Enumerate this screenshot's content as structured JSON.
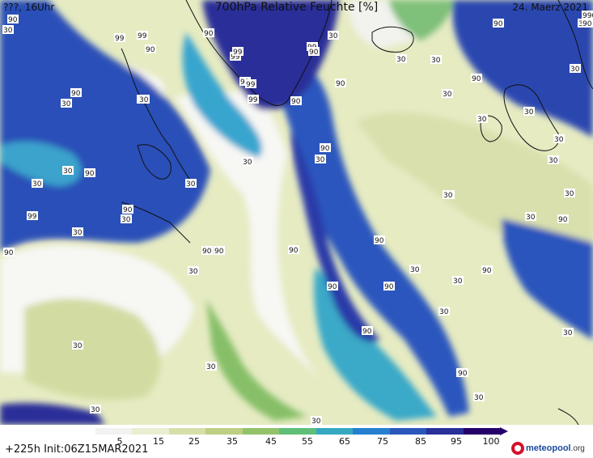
{
  "header": {
    "left": "???, 16Uhr",
    "title": "700hPa Relative Feuchte [%]",
    "date": "24. Maerz 2021"
  },
  "legend": {
    "ticks": [
      "5",
      "15",
      "25",
      "35",
      "45",
      "55",
      "65",
      "75",
      "85",
      "95",
      "100"
    ],
    "colors": [
      "#f2f2f2",
      "#eaeed0",
      "#d6dfa8",
      "#bccf82",
      "#93c26a",
      "#5fbf78",
      "#35a9c2",
      "#2780cf",
      "#2b57bd",
      "#2a2f9a",
      "#25006a"
    ]
  },
  "footer": {
    "run": "+225h  Init:06Z15MAR2021",
    "logo_word": "meteopool",
    "logo_suffix": ".org"
  },
  "map_labels": [
    "90",
    "99",
    "90",
    "90",
    "99",
    "90",
    "99",
    "99",
    "99",
    "99",
    "99",
    "90",
    "90",
    "99",
    "90",
    "30",
    "90",
    "30",
    "90",
    "90",
    "99",
    "90",
    "30",
    "30",
    "90",
    "90",
    "30",
    "90",
    "30",
    "30",
    "90",
    "30",
    "90",
    "90",
    "90",
    "90",
    "90",
    "90",
    "90",
    "30",
    "30",
    "30",
    "30",
    "30",
    "30",
    "30",
    "30",
    "30",
    "30",
    "90",
    "30",
    "30",
    "30",
    "90",
    "30",
    "30",
    "30",
    "30",
    "30",
    "30",
    "90",
    "30",
    "30",
    "30",
    "30",
    "90",
    "30",
    "30",
    "30",
    "90",
    "30",
    "30",
    "990"
  ]
}
